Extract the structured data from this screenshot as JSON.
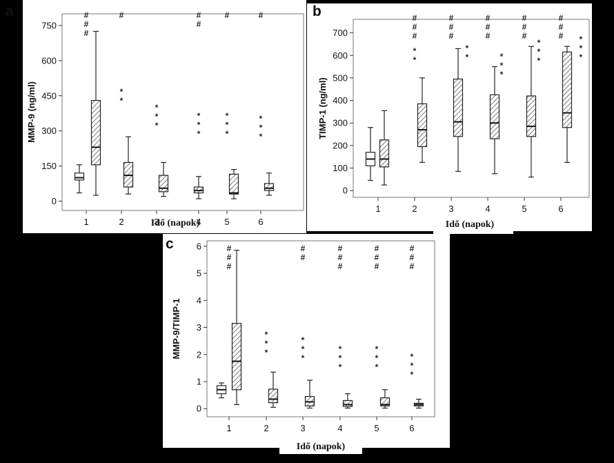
{
  "colors": {
    "background": "#000000",
    "panel": "#ffffff",
    "ink": "#222222",
    "hatch": "#555555"
  },
  "chart_data": [
    {
      "id": "a",
      "type": "box",
      "panel_label": "a",
      "ylabel": "MMP-9 (ng/ml)",
      "xlabel": "Idő (napok)",
      "categories": [
        "1",
        "1",
        "2",
        "3",
        "4",
        "5",
        "6"
      ],
      "x_ticks": [
        "1",
        "2",
        "3",
        "4",
        "5",
        "6"
      ],
      "y_ticks": [
        "0",
        "150",
        "300",
        "450",
        "600",
        "750"
      ],
      "ylim": [
        -40,
        800
      ],
      "boxes": [
        {
          "x": "1",
          "group": "control",
          "whisker_low": 35,
          "q1": 90,
          "median": 100,
          "q3": 120,
          "whisker_high": 155
        },
        {
          "x": "1",
          "group": "patient",
          "whisker_low": 25,
          "q1": 155,
          "median": 230,
          "q3": 430,
          "whisker_high": 725
        },
        {
          "x": "2",
          "group": "patient",
          "whisker_low": 30,
          "q1": 60,
          "median": 110,
          "q3": 165,
          "whisker_high": 275
        },
        {
          "x": "3",
          "group": "patient",
          "whisker_low": 20,
          "q1": 40,
          "median": 55,
          "q3": 110,
          "whisker_high": 165
        },
        {
          "x": "4",
          "group": "patient",
          "whisker_low": 10,
          "q1": 35,
          "median": 45,
          "q3": 60,
          "whisker_high": 105
        },
        {
          "x": "5",
          "group": "patient",
          "whisker_low": 10,
          "q1": 30,
          "median": 35,
          "q3": 115,
          "whisker_high": 135
        },
        {
          "x": "6",
          "group": "patient",
          "whisker_low": 25,
          "q1": 45,
          "median": 55,
          "q3": 75,
          "whisker_high": 120
        }
      ],
      "annotations": [
        {
          "x": "1",
          "hash": "###",
          "stars": ""
        },
        {
          "x": "2",
          "hash": "#",
          "stars": "**"
        },
        {
          "x": "3",
          "hash": "",
          "stars": "***"
        },
        {
          "x": "4",
          "hash": "##",
          "stars": "***"
        },
        {
          "x": "5",
          "hash": "#",
          "stars": "***"
        },
        {
          "x": "6",
          "hash": "#",
          "stars": "***"
        }
      ]
    },
    {
      "id": "b",
      "type": "box",
      "panel_label": "b",
      "ylabel": "TIMP-1 (ng/ml)",
      "xlabel": "Idő (napok)",
      "categories": [
        "1",
        "1",
        "2",
        "3",
        "4",
        "5",
        "6"
      ],
      "x_ticks": [
        "1",
        "2",
        "3",
        "4",
        "5",
        "6"
      ],
      "y_ticks": [
        "0",
        "100",
        "200",
        "300",
        "400",
        "500",
        "600",
        "700"
      ],
      "ylim": [
        -30,
        760
      ],
      "boxes": [
        {
          "x": "1",
          "group": "control",
          "whisker_low": 45,
          "q1": 110,
          "median": 140,
          "q3": 170,
          "whisker_high": 280
        },
        {
          "x": "1",
          "group": "patient",
          "whisker_low": 25,
          "q1": 105,
          "median": 140,
          "q3": 225,
          "whisker_high": 355
        },
        {
          "x": "2",
          "group": "patient",
          "whisker_low": 125,
          "q1": 195,
          "median": 270,
          "q3": 385,
          "whisker_high": 500
        },
        {
          "x": "3",
          "group": "patient",
          "whisker_low": 85,
          "q1": 240,
          "median": 305,
          "q3": 495,
          "whisker_high": 630
        },
        {
          "x": "4",
          "group": "patient",
          "whisker_low": 75,
          "q1": 230,
          "median": 300,
          "q3": 425,
          "whisker_high": 550
        },
        {
          "x": "5",
          "group": "patient",
          "whisker_low": 60,
          "q1": 240,
          "median": 285,
          "q3": 420,
          "whisker_high": 640
        },
        {
          "x": "6",
          "group": "patient",
          "whisker_low": 125,
          "q1": 280,
          "median": 345,
          "q3": 615,
          "whisker_high": 640
        }
      ],
      "annotations": [
        {
          "x": "2",
          "hash": "###",
          "stars": "**"
        },
        {
          "x": "3",
          "hash": "###",
          "stars": "**"
        },
        {
          "x": "4",
          "hash": "###",
          "stars": "***"
        },
        {
          "x": "5",
          "hash": "###",
          "stars": "***"
        },
        {
          "x": "6",
          "hash": "###",
          "stars": "***"
        }
      ]
    },
    {
      "id": "c",
      "type": "box",
      "panel_label": "c",
      "ylabel": "MMP-9/TIMP-1",
      "xlabel": "Idő (napok)",
      "categories": [
        "1",
        "1",
        "2",
        "3",
        "4",
        "5",
        "6"
      ],
      "x_ticks": [
        "1",
        "2",
        "3",
        "4",
        "5",
        "6"
      ],
      "y_ticks": [
        "0",
        "1",
        "2",
        "3",
        "4",
        "5",
        "6"
      ],
      "ylim": [
        -0.3,
        6.2
      ],
      "boxes": [
        {
          "x": "1",
          "group": "control",
          "whisker_low": 0.4,
          "q1": 0.55,
          "median": 0.7,
          "q3": 0.85,
          "whisker_high": 0.95
        },
        {
          "x": "1",
          "group": "patient",
          "whisker_low": 0.15,
          "q1": 0.7,
          "median": 1.75,
          "q3": 3.15,
          "whisker_high": 5.85
        },
        {
          "x": "2",
          "group": "patient",
          "whisker_low": 0.05,
          "q1": 0.22,
          "median": 0.35,
          "q3": 0.72,
          "whisker_high": 1.35
        },
        {
          "x": "3",
          "group": "patient",
          "whisker_low": 0.02,
          "q1": 0.1,
          "median": 0.25,
          "q3": 0.45,
          "whisker_high": 1.05
        },
        {
          "x": "4",
          "group": "patient",
          "whisker_low": 0.02,
          "q1": 0.08,
          "median": 0.15,
          "q3": 0.3,
          "whisker_high": 0.55
        },
        {
          "x": "5",
          "group": "patient",
          "whisker_low": 0.02,
          "q1": 0.1,
          "median": 0.15,
          "q3": 0.4,
          "whisker_high": 0.7
        },
        {
          "x": "6",
          "group": "patient",
          "whisker_low": 0.02,
          "q1": 0.1,
          "median": 0.15,
          "q3": 0.2,
          "whisker_high": 0.35
        }
      ],
      "annotations": [
        {
          "x": "1",
          "hash": "###",
          "stars": ""
        },
        {
          "x": "2",
          "hash": "",
          "stars": "***"
        },
        {
          "x": "3",
          "hash": "##",
          "stars": "***"
        },
        {
          "x": "4",
          "hash": "###",
          "stars": "***"
        },
        {
          "x": "5",
          "hash": "###",
          "stars": "***"
        },
        {
          "x": "6",
          "hash": "###",
          "stars": "***"
        }
      ]
    }
  ]
}
